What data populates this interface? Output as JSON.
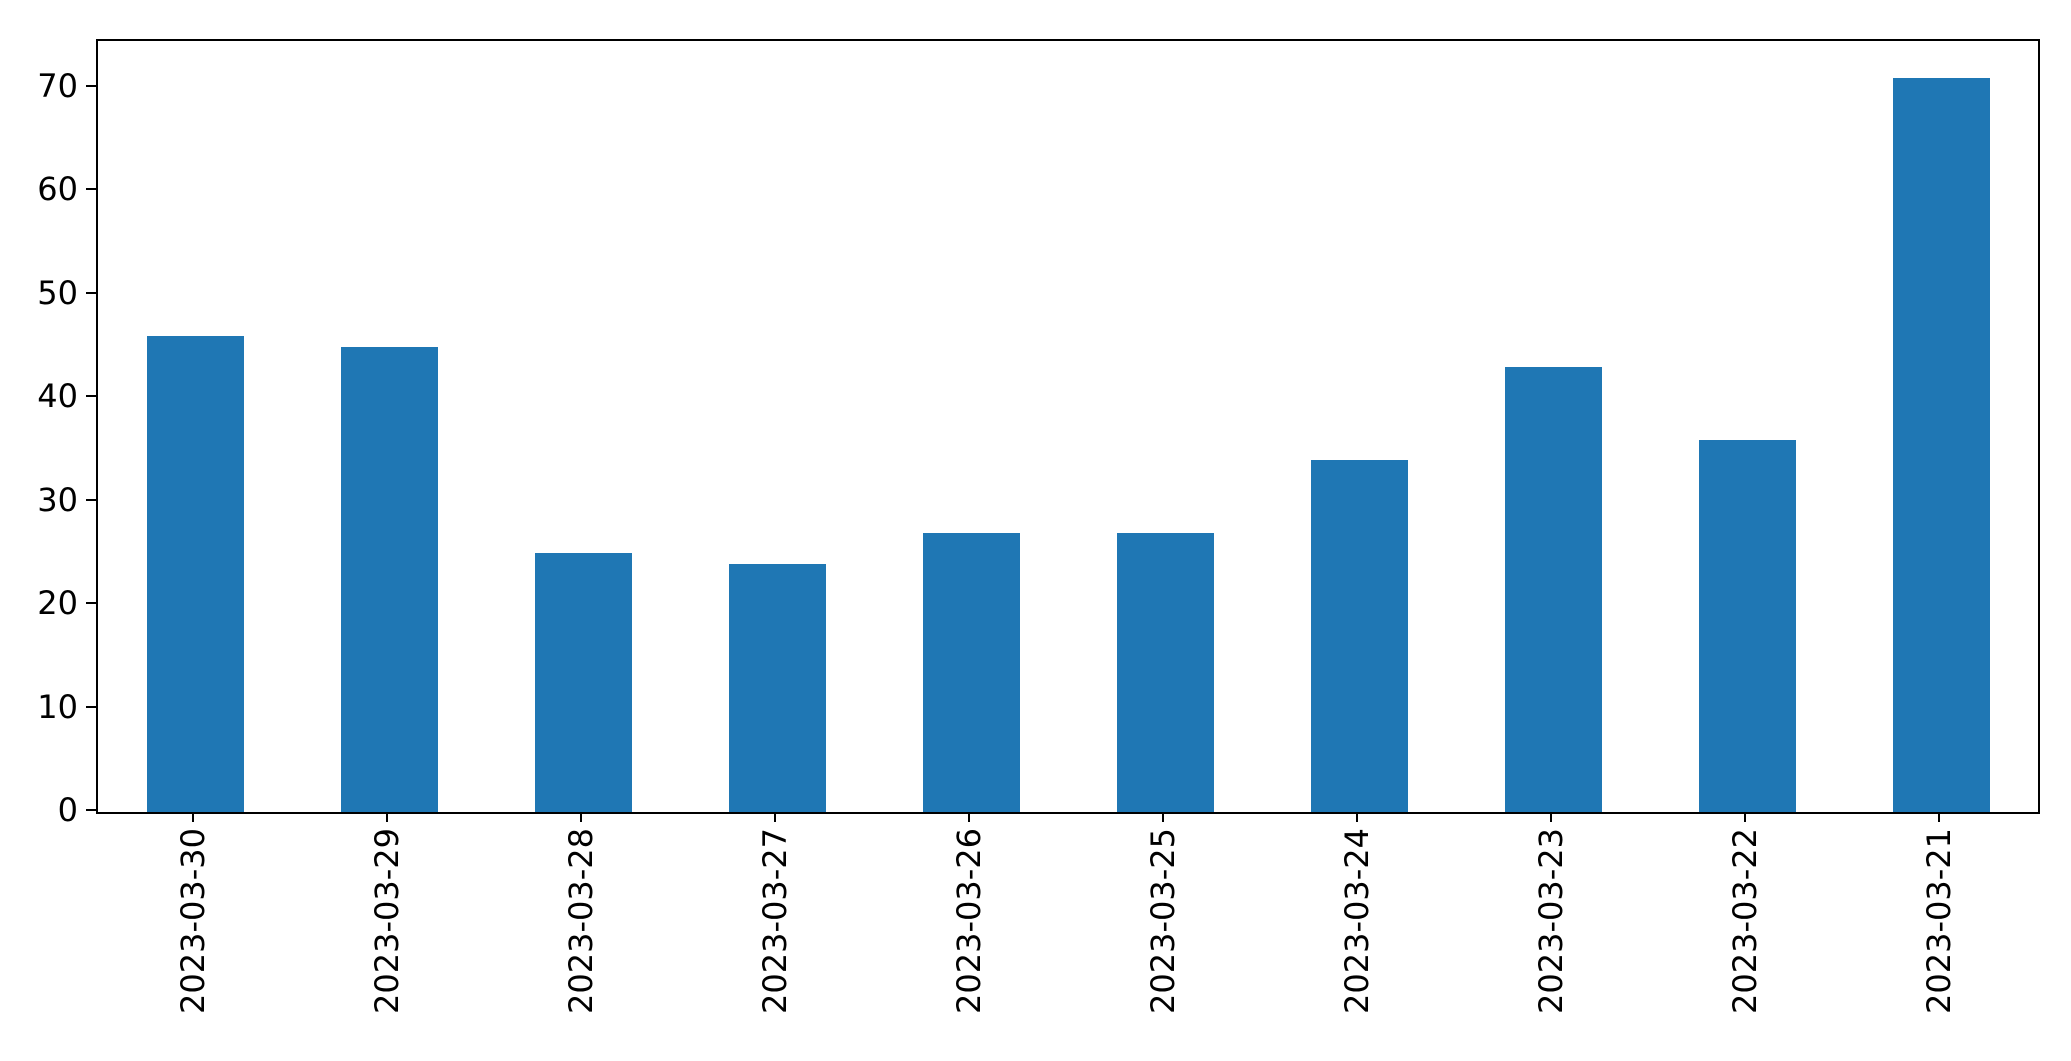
{
  "chart_data": {
    "type": "bar",
    "categories": [
      "2023-03-30",
      "2023-03-29",
      "2023-03-28",
      "2023-03-27",
      "2023-03-26",
      "2023-03-25",
      "2023-03-24",
      "2023-03-23",
      "2023-03-22",
      "2023-03-21"
    ],
    "values": [
      46,
      45,
      25,
      24,
      27,
      27,
      34,
      43,
      36,
      71
    ],
    "title": "",
    "xlabel": "",
    "ylabel": "",
    "ylim": [
      0,
      74.55
    ],
    "yticks": [
      0,
      10,
      20,
      30,
      40,
      50,
      60,
      70
    ],
    "x_tick_rotation": 90,
    "grid": false,
    "legend_position": "none",
    "bar_color": "#1f77b4",
    "axis_color": "#000000",
    "background_color": "#ffffff"
  }
}
